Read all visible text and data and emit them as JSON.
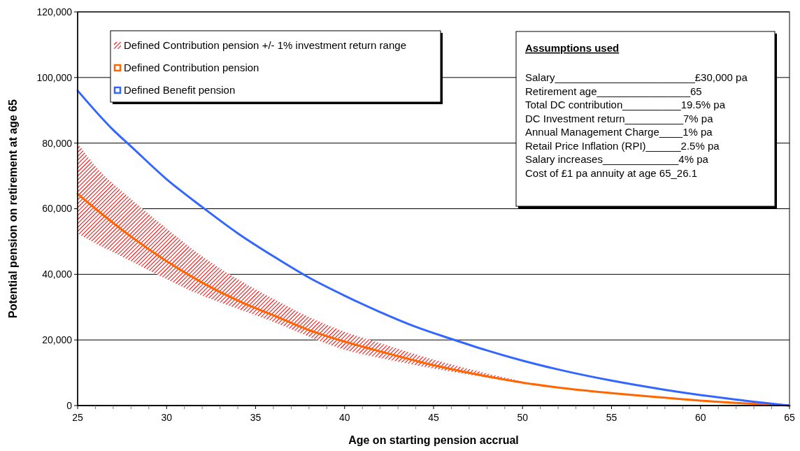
{
  "chart_data": {
    "type": "line",
    "xlabel": "Age on starting pension accrual",
    "ylabel": "Potential pension on retirement at age 65",
    "xlim": [
      25,
      65
    ],
    "xticks": [
      25,
      {
        "value": 26,
        "label": null
      },
      {
        "value": 27,
        "label": null
      },
      {
        "value": 28,
        "label": null
      },
      {
        "value": 29,
        "label": null
      },
      30,
      {
        "value": 31,
        "label": null
      },
      {
        "value": 32,
        "label": null
      },
      {
        "value": 33,
        "label": null
      },
      {
        "value": 34,
        "label": null
      },
      35,
      {
        "value": 36,
        "label": null
      },
      {
        "value": 37,
        "label": null
      },
      {
        "value": 38,
        "label": null
      },
      {
        "value": 39,
        "label": null
      },
      40,
      {
        "value": 41,
        "label": null
      },
      {
        "value": 42,
        "label": null
      },
      {
        "value": 43,
        "label": null
      },
      {
        "value": 44,
        "label": null
      },
      45,
      {
        "value": 46,
        "label": null
      },
      {
        "value": 47,
        "label": null
      },
      {
        "value": 48,
        "label": null
      },
      {
        "value": 49,
        "label": null
      },
      50,
      {
        "value": 51,
        "label": null
      },
      {
        "value": 52,
        "label": null
      },
      {
        "value": 53,
        "label": null
      },
      {
        "value": 54,
        "label": null
      },
      55,
      {
        "value": 56,
        "label": null
      },
      {
        "value": 57,
        "label": null
      },
      {
        "value": 58,
        "label": null
      },
      {
        "value": 59,
        "label": null
      },
      60,
      {
        "value": 61,
        "label": null
      },
      {
        "value": 62,
        "label": null
      },
      {
        "value": 63,
        "label": null
      },
      {
        "value": 64,
        "label": null
      },
      65
    ],
    "ylim": [
      0,
      120000
    ],
    "yticks": [
      {
        "value": 0,
        "label": "0"
      },
      {
        "value": 20000,
        "label": "20,000"
      },
      {
        "value": 40000,
        "label": "40,000"
      },
      {
        "value": 60000,
        "label": "60,000"
      },
      {
        "value": 80000,
        "label": "80,000"
      },
      {
        "value": 100000,
        "label": "100,000"
      },
      {
        "value": 120000,
        "label": "120,000"
      }
    ],
    "grid": "y",
    "legend": "top left",
    "marker": "none",
    "line_style": "solid",
    "series": [
      {
        "name": "Defined Contribution pension",
        "color": "#ff6600",
        "x": [
          25,
          26,
          28,
          30,
          32,
          34,
          36,
          38,
          40,
          42,
          45,
          48,
          50,
          52,
          55,
          58,
          60,
          62,
          65
        ],
        "values": [
          64500,
          60000,
          51500,
          44000,
          37500,
          32000,
          27500,
          23000,
          19500,
          16500,
          12300,
          8900,
          7000,
          5500,
          3800,
          2400,
          1500,
          800,
          0
        ],
        "upper": [
          80000,
          73000,
          63000,
          54000,
          45500,
          38500,
          32500,
          27000,
          22500,
          19000,
          14000,
          9800,
          7300,
          null,
          null,
          null,
          null,
          null,
          null
        ],
        "lower": [
          52500,
          49500,
          44000,
          38500,
          33500,
          29500,
          25500,
          21000,
          17000,
          14500,
          11300,
          8500,
          6800,
          null,
          null,
          null,
          null,
          null,
          null
        ]
      },
      {
        "name": "Defined Benefit pension",
        "color": "#3366ff",
        "x": [
          25,
          27,
          28,
          30,
          32,
          34,
          36,
          38,
          40,
          42,
          44,
          46,
          48,
          50,
          52,
          55,
          58,
          60,
          62,
          65
        ],
        "values": [
          96000,
          84000,
          79000,
          69000,
          60500,
          52500,
          45500,
          39000,
          33500,
          28500,
          24000,
          20300,
          16800,
          13700,
          11000,
          7600,
          4800,
          3200,
          1800,
          0
        ]
      }
    ],
    "annotations": [
      "Defined Contribution pension +/- 1% investment return range",
      "Assumptions used",
      "Salary________________________£30,000 pa",
      "Retirement age________________65",
      "Total DC contribution__________19.5% pa",
      "DC Investment return__________7% pa",
      "Annual Management Charge____1% pa",
      "Retail Price Inflation (RPI)______2.5% pa",
      "Salary increases_____________4% pa",
      "Cost of £1 pa annuity at age 65_26.1"
    ]
  }
}
